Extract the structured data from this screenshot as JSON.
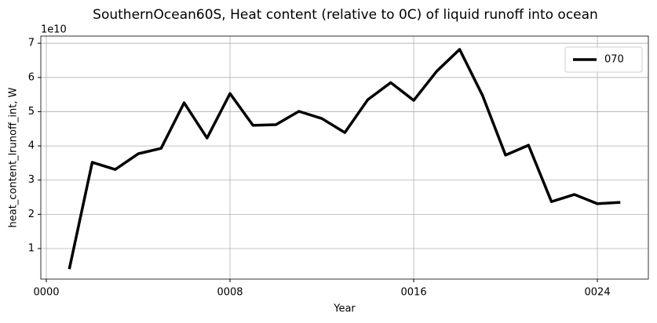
{
  "chart_data": {
    "type": "line",
    "title": "SouthernOcean60S, Heat content (relative to 0C) of liquid runoff into ocean",
    "xlabel": "Year",
    "ylabel": "heat_content_lrunoff_int, W",
    "offset_text": "1e10",
    "x": [
      1,
      2,
      3,
      4,
      5,
      6,
      7,
      8,
      9,
      10,
      11,
      12,
      13,
      14,
      15,
      16,
      17,
      18,
      19,
      20,
      21,
      22,
      23,
      24,
      25
    ],
    "series": [
      {
        "name": "070",
        "color": "#000000",
        "values": [
          0.4,
          3.52,
          3.31,
          3.77,
          3.93,
          5.26,
          4.23,
          5.53,
          4.6,
          4.62,
          5.01,
          4.8,
          4.39,
          5.35,
          5.85,
          5.33,
          6.18,
          6.82,
          5.47,
          3.73,
          4.02,
          2.37,
          2.58,
          2.31,
          2.35
        ]
      }
    ],
    "xlim": [
      -0.24,
      26.22
    ],
    "xticks": [
      {
        "value": 0,
        "label": "0000"
      },
      {
        "value": 8,
        "label": "0008"
      },
      {
        "value": 16,
        "label": "0016"
      },
      {
        "value": 24,
        "label": "0024"
      }
    ],
    "ylim": [
      0.107,
      7.21
    ],
    "yticks": [
      1,
      2,
      3,
      4,
      5,
      6,
      7
    ],
    "grid": true,
    "legend": "upper right"
  }
}
